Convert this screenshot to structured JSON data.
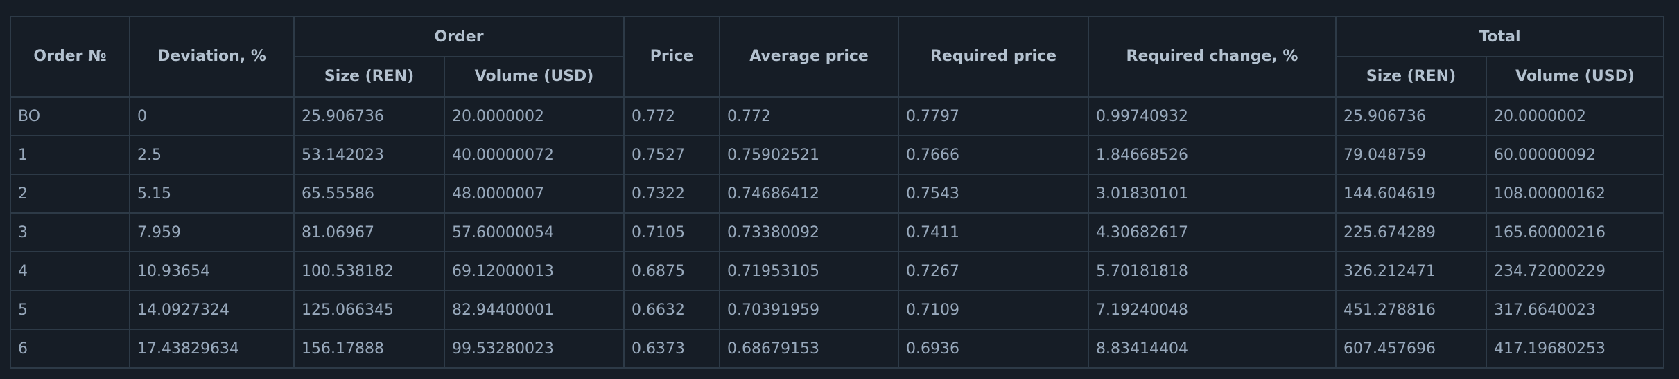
{
  "headers": {
    "order_no": "Order №",
    "deviation": "Deviation, %",
    "order_group": "Order",
    "order_size": "Size (REN)",
    "order_volume": "Volume (USD)",
    "price": "Price",
    "average_price": "Average price",
    "required_price": "Required price",
    "required_change": "Required change, %",
    "total_group": "Total",
    "total_size": "Size (REN)",
    "total_volume": "Volume (USD)"
  },
  "rows": [
    {
      "order": "BO",
      "deviation": "0",
      "size": "25.906736",
      "volume": "20.0000002",
      "price": "0.772",
      "avg_price": "0.772",
      "req_price": "0.7797",
      "req_change": "0.99740932",
      "total_size": "25.906736",
      "total_volume": "20.0000002"
    },
    {
      "order": "1",
      "deviation": "2.5",
      "size": "53.142023",
      "volume": "40.00000072",
      "price": "0.7527",
      "avg_price": "0.75902521",
      "req_price": "0.7666",
      "req_change": "1.84668526",
      "total_size": "79.048759",
      "total_volume": "60.00000092"
    },
    {
      "order": "2",
      "deviation": "5.15",
      "size": "65.55586",
      "volume": "48.0000007",
      "price": "0.7322",
      "avg_price": "0.74686412",
      "req_price": "0.7543",
      "req_change": "3.01830101",
      "total_size": "144.604619",
      "total_volume": "108.00000162"
    },
    {
      "order": "3",
      "deviation": "7.959",
      "size": "81.06967",
      "volume": "57.60000054",
      "price": "0.7105",
      "avg_price": "0.73380092",
      "req_price": "0.7411",
      "req_change": "4.30682617",
      "total_size": "225.674289",
      "total_volume": "165.60000216"
    },
    {
      "order": "4",
      "deviation": "10.93654",
      "size": "100.538182",
      "volume": "69.12000013",
      "price": "0.6875",
      "avg_price": "0.71953105",
      "req_price": "0.7267",
      "req_change": "5.70181818",
      "total_size": "326.212471",
      "total_volume": "234.72000229"
    },
    {
      "order": "5",
      "deviation": "14.0927324",
      "size": "125.066345",
      "volume": "82.94400001",
      "price": "0.6632",
      "avg_price": "0.70391959",
      "req_price": "0.7109",
      "req_change": "7.19240048",
      "total_size": "451.278816",
      "total_volume": "317.6640023"
    },
    {
      "order": "6",
      "deviation": "17.43829634",
      "size": "156.17888",
      "volume": "99.53280023",
      "price": "0.6373",
      "avg_price": "0.68679153",
      "req_price": "0.6936",
      "req_change": "8.83414404",
      "total_size": "607.457696",
      "total_volume": "417.19680253"
    }
  ]
}
